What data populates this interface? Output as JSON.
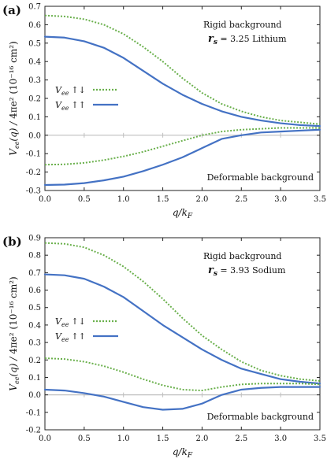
{
  "colors": {
    "green": "#6ab04c",
    "blue": "#4472c4",
    "zero_line": "#bfbfbf",
    "frame": "#222222"
  },
  "chart_data": [
    {
      "type": "line",
      "panel_label": "(a)",
      "xlabel": "q/k_F",
      "ylabel": "V_ee(q) / 4πe² (10⁻¹⁶ cm²)",
      "xlim": [
        0,
        3.5
      ],
      "ylim": [
        -0.3,
        0.7
      ],
      "xticks": [
        "0.0",
        "0.5",
        "1.0",
        "1.5",
        "2.0",
        "2.5",
        "3.0",
        "3.5"
      ],
      "yticks": [
        "-0.3",
        "-0.2",
        "-0.1",
        "0.0",
        "0.1",
        "0.2",
        "0.3",
        "0.4",
        "0.5",
        "0.6",
        "0.7"
      ],
      "annotations": {
        "rigid": "Rigid background",
        "rs_symbol": "r",
        "rs_sub": "s",
        "rs_value": " = 3.25 Lithium",
        "deformable": "Deformable background"
      },
      "legend": [
        {
          "symbol": "V",
          "sub": "ee",
          "spin": "↑↓",
          "style": "dotted",
          "color": "green"
        },
        {
          "symbol": "V",
          "sub": "ee",
          "spin": "↑↑",
          "style": "solid",
          "color": "blue"
        }
      ],
      "series": [
        {
          "style": "dotted",
          "color": "green",
          "x": [
            0,
            0.25,
            0.5,
            0.75,
            1.0,
            1.25,
            1.5,
            1.75,
            2.0,
            2.25,
            2.5,
            2.75,
            3.0,
            3.25,
            3.5
          ],
          "y": [
            0.65,
            0.645,
            0.63,
            0.6,
            0.55,
            0.48,
            0.4,
            0.31,
            0.23,
            0.17,
            0.13,
            0.1,
            0.08,
            0.07,
            0.06
          ]
        },
        {
          "style": "solid",
          "color": "blue",
          "x": [
            0,
            0.25,
            0.5,
            0.75,
            1.0,
            1.25,
            1.5,
            1.75,
            2.0,
            2.25,
            2.5,
            2.75,
            3.0,
            3.25,
            3.5
          ],
          "y": [
            0.535,
            0.53,
            0.51,
            0.475,
            0.42,
            0.35,
            0.28,
            0.22,
            0.17,
            0.13,
            0.1,
            0.08,
            0.065,
            0.055,
            0.05
          ]
        },
        {
          "style": "dotted",
          "color": "green",
          "x": [
            0,
            0.25,
            0.5,
            0.75,
            1.0,
            1.25,
            1.5,
            1.75,
            2.0,
            2.25,
            2.5,
            2.75,
            3.0,
            3.25,
            3.5
          ],
          "y": [
            -0.16,
            -0.158,
            -0.15,
            -0.135,
            -0.115,
            -0.09,
            -0.06,
            -0.03,
            0.0,
            0.02,
            0.03,
            0.035,
            0.04,
            0.04,
            0.04
          ]
        },
        {
          "style": "solid",
          "color": "blue",
          "x": [
            0,
            0.25,
            0.5,
            0.75,
            1.0,
            1.25,
            1.5,
            1.75,
            2.0,
            2.25,
            2.5,
            2.75,
            3.0,
            3.25,
            3.5
          ],
          "y": [
            -0.27,
            -0.268,
            -0.26,
            -0.245,
            -0.225,
            -0.195,
            -0.16,
            -0.12,
            -0.07,
            -0.02,
            0.0,
            0.015,
            0.02,
            0.025,
            0.03
          ]
        }
      ]
    },
    {
      "type": "line",
      "panel_label": "(b)",
      "xlabel": "q/k_F",
      "ylabel": "V_ee(q) / 4πe² (10⁻¹⁶ cm²)",
      "xlim": [
        0,
        3.5
      ],
      "ylim": [
        -0.2,
        0.9
      ],
      "xticks": [
        "0.0",
        "0.5",
        "1.0",
        "1.5",
        "2.0",
        "2.5",
        "3.0",
        "3.5"
      ],
      "yticks": [
        "-0.2",
        "-0.1",
        "0.0",
        "0.1",
        "0.2",
        "0.3",
        "0.4",
        "0.5",
        "0.6",
        "0.7",
        "0.8",
        "0.9"
      ],
      "annotations": {
        "rigid": "Rigid background",
        "rs_symbol": "r",
        "rs_sub": "s",
        "rs_value": " = 3.93 Sodium",
        "deformable": "Deformable background"
      },
      "legend": [
        {
          "symbol": "V",
          "sub": "ee",
          "spin": "↑↓",
          "style": "dotted",
          "color": "green"
        },
        {
          "symbol": "V",
          "sub": "ee",
          "spin": "↑↑",
          "style": "solid",
          "color": "blue"
        }
      ],
      "series": [
        {
          "style": "dotted",
          "color": "green",
          "x": [
            0,
            0.25,
            0.5,
            0.75,
            1.0,
            1.25,
            1.5,
            1.75,
            2.0,
            2.25,
            2.5,
            2.75,
            3.0,
            3.25,
            3.5
          ],
          "y": [
            0.87,
            0.865,
            0.845,
            0.8,
            0.735,
            0.65,
            0.55,
            0.44,
            0.34,
            0.26,
            0.19,
            0.14,
            0.11,
            0.09,
            0.08
          ]
        },
        {
          "style": "solid",
          "color": "blue",
          "x": [
            0,
            0.25,
            0.5,
            0.75,
            1.0,
            1.25,
            1.5,
            1.75,
            2.0,
            2.25,
            2.5,
            2.75,
            3.0,
            3.25,
            3.5
          ],
          "y": [
            0.69,
            0.685,
            0.665,
            0.62,
            0.56,
            0.48,
            0.4,
            0.33,
            0.26,
            0.2,
            0.15,
            0.12,
            0.09,
            0.075,
            0.065
          ]
        },
        {
          "style": "dotted",
          "color": "green",
          "x": [
            0,
            0.25,
            0.5,
            0.75,
            1.0,
            1.25,
            1.5,
            1.75,
            2.0,
            2.25,
            2.5,
            2.75,
            3.0,
            3.25,
            3.5
          ],
          "y": [
            0.21,
            0.205,
            0.19,
            0.165,
            0.13,
            0.09,
            0.055,
            0.03,
            0.025,
            0.045,
            0.06,
            0.065,
            0.065,
            0.065,
            0.06
          ]
        },
        {
          "style": "solid",
          "color": "blue",
          "x": [
            0,
            0.25,
            0.5,
            0.75,
            1.0,
            1.25,
            1.5,
            1.75,
            2.0,
            2.25,
            2.5,
            2.75,
            3.0,
            3.25,
            3.5
          ],
          "y": [
            0.03,
            0.025,
            0.01,
            -0.01,
            -0.04,
            -0.07,
            -0.085,
            -0.08,
            -0.05,
            0.0,
            0.03,
            0.04,
            0.045,
            0.045,
            0.045
          ]
        }
      ]
    }
  ]
}
